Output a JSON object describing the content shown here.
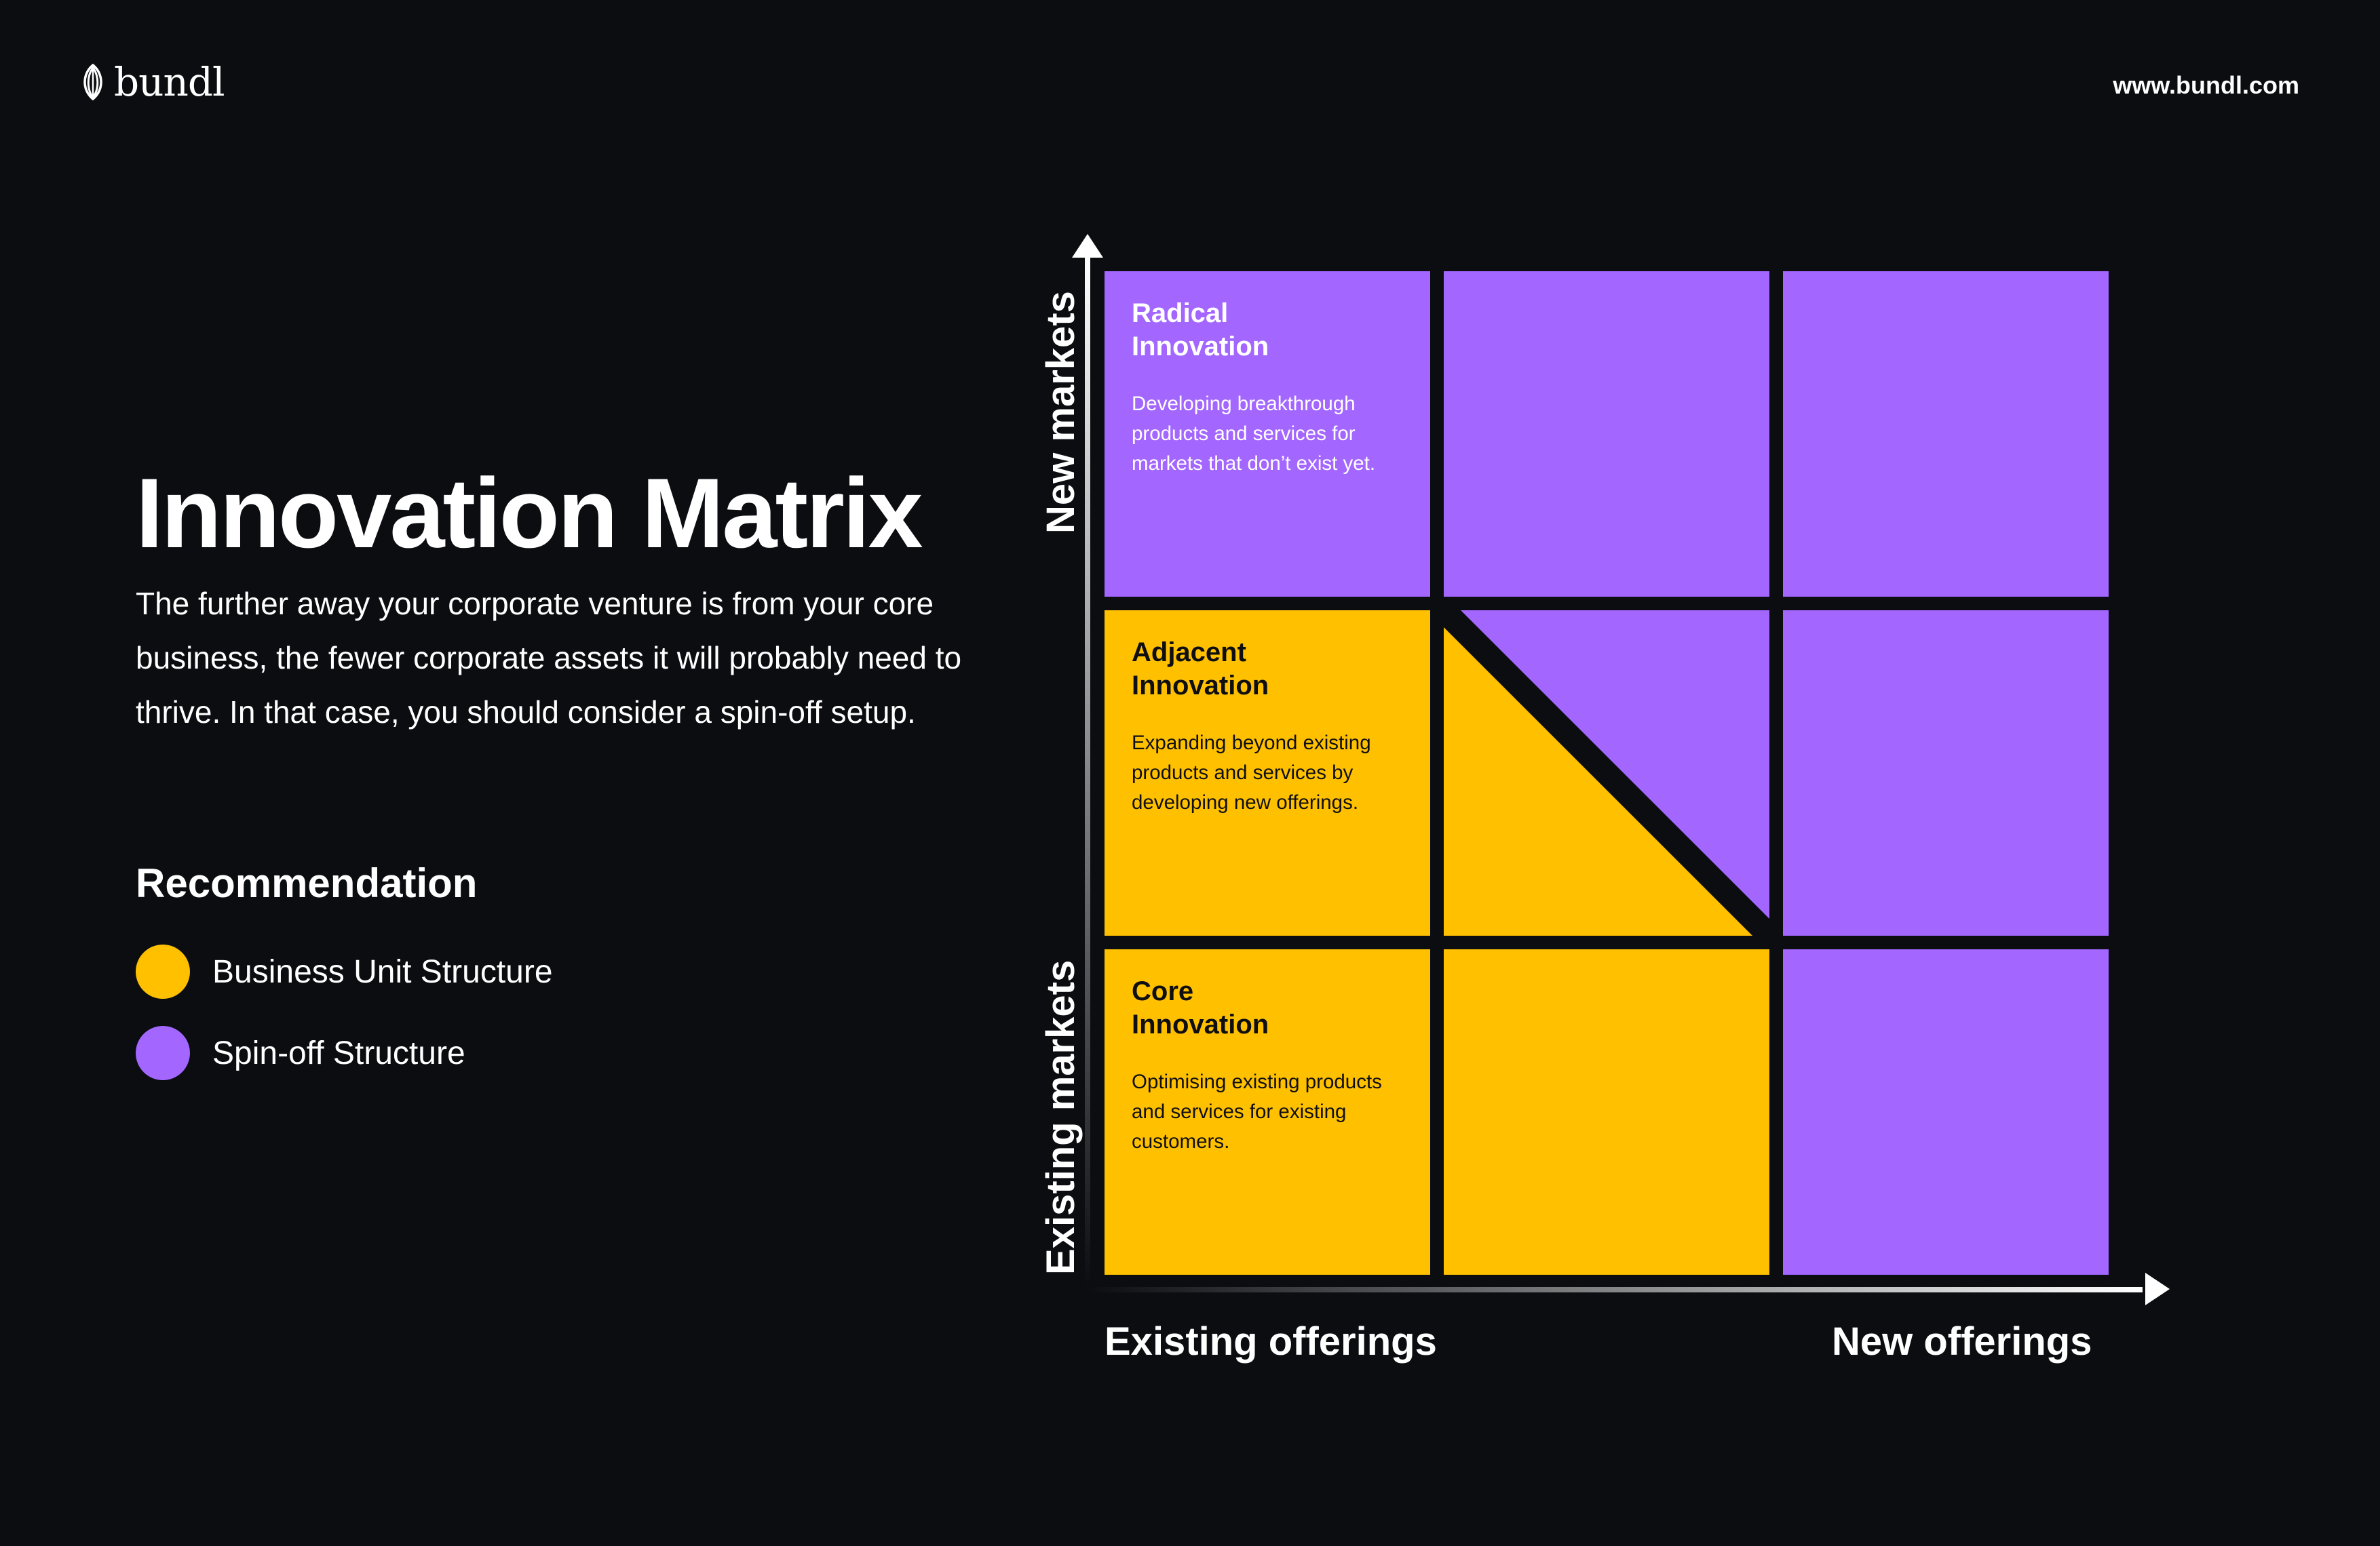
{
  "header": {
    "logo_text": "bundl",
    "url": "www.bundl.com"
  },
  "intro": {
    "title": "Innovation Matrix",
    "description": "The further away your corporate venture is from your core business, the fewer corporate assets it will probably need to thrive. In that case, you should consider a spin-off setup."
  },
  "recommendation": {
    "title": "Recommendation",
    "items": [
      {
        "label": "Business Unit Structure",
        "color": "#ffc000"
      },
      {
        "label": "Spin-off Structure",
        "color": "#a366ff"
      }
    ]
  },
  "colors": {
    "background": "#0b0d11",
    "business_unit": "#ffc000",
    "spin_off": "#a366ff",
    "text": "#ffffff"
  },
  "matrix": {
    "y_axis": {
      "top_label": "New markets",
      "bottom_label": "Existing markets"
    },
    "x_axis": {
      "left_label": "Existing offerings",
      "right_label": "New offerings"
    },
    "rows": [
      {
        "cells": [
          {
            "fill": "spin_off",
            "title": "Radical\nInnovation",
            "description": "Developing breakthrough products and services for markets that don’t exist yet."
          },
          {
            "fill": "spin_off"
          },
          {
            "fill": "spin_off"
          }
        ]
      },
      {
        "cells": [
          {
            "fill": "business_unit",
            "title": "Adjacent\nInnovation",
            "description": "Expanding beyond existing products and services by developing new offerings."
          },
          {
            "fill": "split",
            "upper_right": "spin_off",
            "lower_left": "business_unit"
          },
          {
            "fill": "spin_off"
          }
        ]
      },
      {
        "cells": [
          {
            "fill": "business_unit",
            "title": "Core\nInnovation",
            "description": "Optimising existing products and services for existing customers."
          },
          {
            "fill": "business_unit"
          },
          {
            "fill": "spin_off"
          }
        ]
      }
    ]
  }
}
